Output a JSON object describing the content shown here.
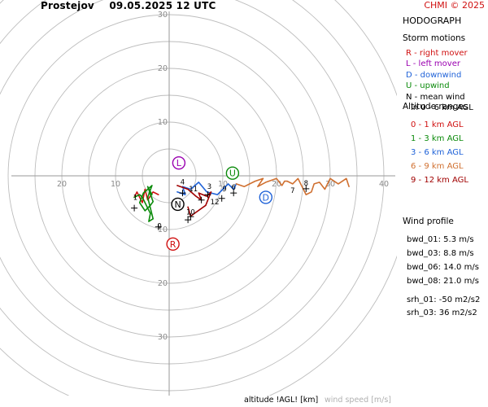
{
  "header": {
    "station": "Prostejov",
    "datetime": "09.05.2025 12 UTC",
    "credit": "CHMI © 2025"
  },
  "panel": {
    "title": "HODOGRAPH",
    "storm_motions": {
      "title": "Storm motions",
      "items": [
        {
          "text": "R - right mover",
          "color": "#d01010"
        },
        {
          "text": "L - left mover",
          "color": "#9a00b0"
        },
        {
          "text": "D - downwind",
          "color": "#1f62d8"
        },
        {
          "text": "U - upwind",
          "color": "#0a8a0a"
        },
        {
          "text": "N - mean wind",
          "color": "#000000"
        },
        {
          "text": "in 0 - 6 km AGL",
          "color": "#000000"
        }
      ]
    },
    "altitude_ranges": {
      "title": "Altitude ranges",
      "items": [
        {
          "text": "0 - 1 km AGL",
          "color": "#d01010"
        },
        {
          "text": "1 - 3 km AGL",
          "color": "#0a8a0a"
        },
        {
          "text": "3 - 6 km AGL",
          "color": "#1f62d8"
        },
        {
          "text": "6 - 9 km AGL",
          "color": "#d07030"
        },
        {
          "text": "9 - 12 km AGL",
          "color": "#a00000"
        }
      ]
    },
    "wind_profile": {
      "title": "Wind profile",
      "items": [
        "bwd_01: 5.3 m/s",
        "bwd_03: 8.8 m/s",
        "bwd_06: 14.0 m/s",
        "bwd_08: 21.0 m/s"
      ],
      "items2": [
        "srh_01: -50 m2/s2",
        "srh_03: 36 m2/s2"
      ]
    }
  },
  "footer": {
    "altitude_label": "altitude !AGL! [km]",
    "windspeed_label": "wind speed [m/s]"
  },
  "chart_data": {
    "type": "line",
    "ring_labels": [
      {
        "text": "10",
        "u": -10,
        "v": 0
      },
      {
        "text": "20",
        "u": -20,
        "v": 0
      },
      {
        "text": "10",
        "u": 10,
        "v": 0
      },
      {
        "text": "20",
        "u": 20,
        "v": 0
      },
      {
        "text": "30",
        "u": 30,
        "v": 0
      },
      {
        "text": "40",
        "u": 40,
        "v": 0
      },
      {
        "text": "10",
        "u": 0,
        "v": 10
      },
      {
        "text": "20",
        "u": 0,
        "v": 20
      },
      {
        "text": "30",
        "u": 0,
        "v": 30
      },
      {
        "text": "10",
        "u": 0,
        "v": -10
      },
      {
        "text": "20",
        "u": 0,
        "v": -20
      },
      {
        "text": "30",
        "u": 0,
        "v": -30
      }
    ],
    "rings": [
      5,
      10,
      15,
      20,
      25,
      30,
      35,
      40,
      45
    ],
    "series": [
      {
        "color": "#d01010",
        "points": [
          [
            -2,
            -3.5
          ],
          [
            -3,
            -3
          ],
          [
            -4,
            -4.5
          ],
          [
            -4.5,
            -2.5
          ],
          [
            -5,
            -5
          ],
          [
            -6,
            -3
          ],
          [
            -6.5,
            -4
          ]
        ]
      },
      {
        "color": "#0a8a0a",
        "points": [
          [
            -6.5,
            -4
          ],
          [
            -5.5,
            -3.5
          ],
          [
            -5,
            -4
          ],
          [
            -4,
            -6
          ],
          [
            -3.5,
            -7
          ],
          [
            -3.8,
            -8.5
          ],
          [
            -3,
            -8
          ],
          [
            -4,
            -4
          ],
          [
            -3.2,
            -1.8
          ],
          [
            -4.8,
            -3.2
          ],
          [
            -5.5,
            -5
          ],
          [
            -4.5,
            -6.5
          ],
          [
            -3.5,
            -5.5
          ],
          [
            -3,
            -4.8
          ],
          [
            -4,
            -2
          ],
          [
            -3.2,
            -3.5
          ]
        ]
      },
      {
        "color": "#1f62d8",
        "points": [
          [
            1.5,
            -3
          ],
          [
            3,
            -3.5
          ],
          [
            2.5,
            -2
          ],
          [
            4,
            -2.5
          ],
          [
            5.5,
            -1.2
          ],
          [
            7,
            -3
          ],
          [
            9,
            -3.5
          ],
          [
            10,
            -2.5
          ],
          [
            11,
            -1.5
          ],
          [
            12,
            -2.5
          ],
          [
            12.5,
            -1.5
          ]
        ]
      },
      {
        "color": "#d07030",
        "points": [
          [
            12.5,
            -1.5
          ],
          [
            14,
            -2
          ],
          [
            15,
            -1.5
          ],
          [
            16,
            -1
          ],
          [
            17.5,
            -0.5
          ],
          [
            16.5,
            -2
          ],
          [
            18,
            -1.2
          ],
          [
            20,
            -0.5
          ],
          [
            21,
            -1.8
          ],
          [
            21.5,
            -1
          ],
          [
            22,
            -1
          ],
          [
            23,
            -1.5
          ],
          [
            24,
            -0.5
          ],
          [
            25.5,
            -3.5
          ],
          [
            26.5,
            -3
          ],
          [
            27,
            -1.5
          ],
          [
            28,
            -1.2
          ],
          [
            29,
            -2.5
          ],
          [
            30,
            -0.5
          ],
          [
            31.5,
            -1.5
          ],
          [
            33,
            -0.5
          ],
          [
            33.5,
            -2
          ]
        ]
      },
      {
        "color": "#a00000",
        "points": [
          [
            1.5,
            -1.8
          ],
          [
            3.5,
            -2.5
          ],
          [
            5,
            -3.8
          ],
          [
            6,
            -4.5
          ],
          [
            5.5,
            -3.2
          ],
          [
            7,
            -3.8
          ],
          [
            7.8,
            -3
          ],
          [
            6.8,
            -5.5
          ],
          [
            4,
            -7.5
          ],
          [
            3.5,
            -5.8
          ]
        ]
      }
    ],
    "markers": [
      {
        "label": "R",
        "u": 0.7,
        "v": -12.7,
        "color": "#d01010"
      },
      {
        "label": "L",
        "u": 1.8,
        "v": 2.4,
        "color": "#9a00b0"
      },
      {
        "label": "D",
        "u": 18,
        "v": -4,
        "color": "#1f62d8"
      },
      {
        "label": "U",
        "u": 11.8,
        "v": 0.5,
        "color": "#0a8a0a"
      },
      {
        "label": "N",
        "u": 1.6,
        "v": -5.3,
        "color": "#000000"
      }
    ],
    "alt_labels": [
      {
        "text": "1",
        "u": -6.3,
        "v": -4.5
      },
      {
        "text": "4",
        "u": 2.5,
        "v": -1.6
      },
      {
        "text": "11",
        "u": 4.5,
        "v": -2.9
      },
      {
        "text": "3",
        "u": 7.5,
        "v": -2.4
      },
      {
        "text": "12",
        "u": 8.5,
        "v": -5.3
      },
      {
        "text": "9",
        "u": 10.3,
        "v": -2.9
      },
      {
        "text": "6",
        "u": 12,
        "v": -2.6
      },
      {
        "text": "10",
        "u": 4,
        "v": -7.2
      },
      {
        "text": "7",
        "u": 23,
        "v": -3.2
      },
      {
        "text": "8",
        "u": 25.5,
        "v": -1.8
      },
      {
        "text": "0",
        "u": -1.8,
        "v": -9.8
      }
    ],
    "crosses": [
      [
        -6.5,
        -6
      ],
      [
        -2,
        -9.5
      ],
      [
        2.5,
        -3.2
      ],
      [
        6,
        -4.5
      ],
      [
        7.2,
        -3.5
      ],
      [
        9.8,
        -4.2
      ],
      [
        12,
        -3.2
      ],
      [
        4,
        -7.6
      ],
      [
        25.5,
        -2.4
      ],
      [
        3.5,
        -8.2
      ]
    ]
  }
}
